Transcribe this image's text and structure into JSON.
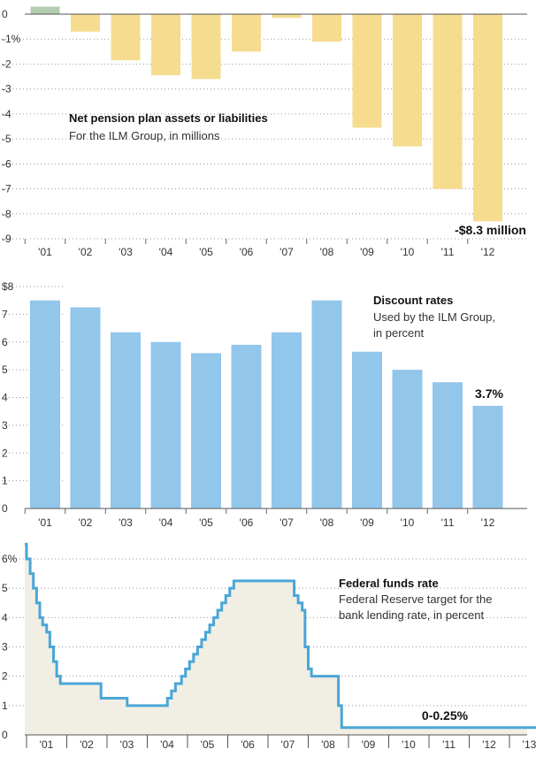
{
  "chart_data": [
    {
      "type": "bar",
      "title": "Net pension plan assets or liabilities",
      "subtitle": "For the ILM Group, in millions",
      "categories": [
        "'01",
        "'02",
        "'03",
        "'04",
        "'05",
        "'06",
        "'07",
        "'08",
        "'09",
        "'10",
        "'11",
        "'12"
      ],
      "values": [
        0.3,
        -0.7,
        -1.85,
        -2.45,
        -2.6,
        -1.5,
        -0.15,
        -1.1,
        -4.55,
        -5.3,
        -7.0,
        -8.3
      ],
      "ylim": [
        -9,
        0
      ],
      "yticks": [
        "0",
        "-1%",
        "-2",
        "-3",
        "-4",
        "-5",
        "-6",
        "-7",
        "-8",
        "-9"
      ],
      "callout": "-$8.3 million",
      "colors": {
        "negative": "#f5dc8f",
        "positive": "#b4ccb0"
      },
      "grid": "dotted horizontal"
    },
    {
      "type": "bar",
      "title": "Discount rates",
      "subtitle_lines": [
        "Used by the ILM Group,",
        "in percent"
      ],
      "categories": [
        "'01",
        "'02",
        "'03",
        "'04",
        "'05",
        "'06",
        "'07",
        "'08",
        "'09",
        "'10",
        "'11",
        "'12"
      ],
      "values": [
        7.5,
        7.25,
        6.35,
        6.0,
        5.6,
        5.9,
        6.35,
        7.5,
        5.65,
        5.0,
        4.55,
        3.7
      ],
      "ylim": [
        0,
        8
      ],
      "yticks": [
        "0",
        "1",
        "2",
        "3",
        "4",
        "5",
        "6",
        "7",
        "$8"
      ],
      "callout": "3.7%",
      "colors": {
        "bar": "#92c6eb"
      },
      "grid": "dotted horizontal"
    },
    {
      "type": "area",
      "title": "Federal funds rate",
      "subtitle_lines": [
        "Federal Reserve target for the",
        "bank lending rate, in percent"
      ],
      "categories": [
        "'01",
        "'02",
        "'03",
        "'04",
        "'05",
        "'06",
        "'07",
        "'08",
        "'09",
        "'10",
        "'11",
        "'12",
        "'13"
      ],
      "ylim": [
        0,
        6.5
      ],
      "yticks": [
        "0",
        "1",
        "2",
        "3",
        "4",
        "5",
        "6%"
      ],
      "callout": "0-0.25%",
      "colors": {
        "line": "#4aa6d6",
        "fill": "#f1eee4"
      },
      "grid": "dotted horizontal",
      "x": [
        2000.85,
        2001.0,
        2001.09,
        2001.17,
        2001.25,
        2001.33,
        2001.4,
        2001.5,
        2001.58,
        2001.67,
        2001.75,
        2001.84,
        2001.92,
        2002.85,
        2003.5,
        2004.5,
        2004.6,
        2004.7,
        2004.85,
        2004.95,
        2005.05,
        2005.15,
        2005.25,
        2005.35,
        2005.45,
        2005.55,
        2005.65,
        2005.75,
        2005.85,
        2005.95,
        2006.05,
        2006.15,
        2006.25,
        2006.35,
        2006.45,
        2007.65,
        2007.75,
        2007.85,
        2007.92,
        2008.0,
        2008.08,
        2008.3,
        2008.75,
        2008.83,
        2008.92,
        2013.99
      ],
      "y": [
        6.5,
        6.0,
        5.5,
        5.0,
        4.5,
        4.0,
        3.75,
        3.5,
        3.0,
        2.5,
        2.0,
        1.75,
        1.75,
        1.25,
        1.0,
        1.25,
        1.5,
        1.75,
        2.0,
        2.25,
        2.5,
        2.75,
        3.0,
        3.25,
        3.5,
        3.75,
        4.0,
        4.25,
        4.5,
        4.75,
        5.0,
        5.25,
        5.25,
        5.25,
        5.25,
        4.75,
        4.5,
        4.25,
        3.0,
        2.25,
        2.0,
        2.0,
        1.0,
        0.25,
        0.25,
        0.25
      ]
    }
  ]
}
